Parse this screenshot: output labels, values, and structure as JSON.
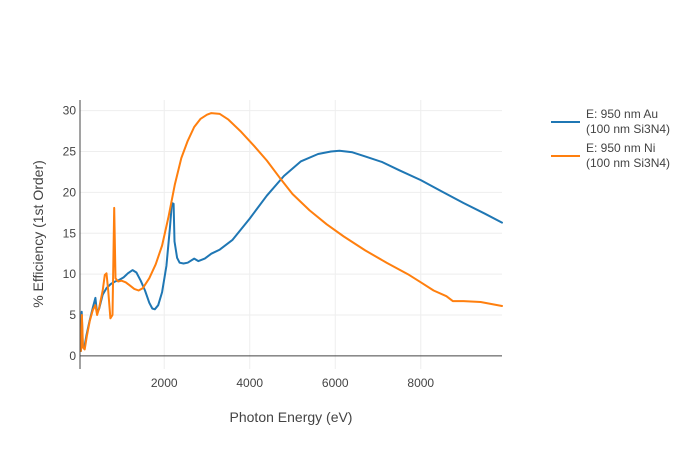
{
  "chart_data": {
    "type": "line",
    "xlabel": "Photon Energy (eV)",
    "ylabel": "% Efficiency (1st Order)",
    "xlim": [
      30,
      9900
    ],
    "ylim": [
      -1.6,
      31.3
    ],
    "x_ticks": [
      2000,
      4000,
      6000,
      8000
    ],
    "x_tick_labels": [
      "2000",
      "4000",
      "6000",
      "8000"
    ],
    "y_ticks": [
      0,
      5,
      10,
      15,
      20,
      25,
      30
    ],
    "y_tick_labels": [
      "0",
      "5",
      "10",
      "15",
      "20",
      "25",
      "30"
    ],
    "grid": true,
    "legend_position": "top-right",
    "series": [
      {
        "name": "E: 950 nm Au (100 nm Si3N4)",
        "legend_lines": [
          "E: 950 nm Au",
          "(100 nm Si3N4)"
        ],
        "color": "#1f77b4",
        "points": [
          [
            50,
            0.6
          ],
          [
            70,
            5.4
          ],
          [
            95,
            1.2
          ],
          [
            130,
            1.0
          ],
          [
            180,
            2.5
          ],
          [
            250,
            4.2
          ],
          [
            330,
            5.9
          ],
          [
            390,
            7.1
          ],
          [
            430,
            5.2
          ],
          [
            480,
            5.8
          ],
          [
            560,
            7.5
          ],
          [
            650,
            8.3
          ],
          [
            750,
            8.8
          ],
          [
            850,
            9.1
          ],
          [
            950,
            9.3
          ],
          [
            1050,
            9.6
          ],
          [
            1150,
            10.1
          ],
          [
            1260,
            10.5
          ],
          [
            1350,
            10.2
          ],
          [
            1450,
            9.2
          ],
          [
            1550,
            8.0
          ],
          [
            1650,
            6.5
          ],
          [
            1720,
            5.8
          ],
          [
            1780,
            5.7
          ],
          [
            1860,
            6.2
          ],
          [
            1950,
            7.8
          ],
          [
            2050,
            11.0
          ],
          [
            2130,
            15.5
          ],
          [
            2180,
            18.7
          ],
          [
            2220,
            18.6
          ],
          [
            2240,
            14.0
          ],
          [
            2300,
            12.0
          ],
          [
            2360,
            11.4
          ],
          [
            2450,
            11.3
          ],
          [
            2550,
            11.4
          ],
          [
            2700,
            11.9
          ],
          [
            2800,
            11.6
          ],
          [
            2950,
            11.9
          ],
          [
            3100,
            12.5
          ],
          [
            3300,
            13.0
          ],
          [
            3600,
            14.2
          ],
          [
            4000,
            16.8
          ],
          [
            4400,
            19.6
          ],
          [
            4800,
            22.0
          ],
          [
            5200,
            23.8
          ],
          [
            5600,
            24.7
          ],
          [
            5900,
            25.0
          ],
          [
            6100,
            25.1
          ],
          [
            6400,
            24.9
          ],
          [
            6700,
            24.4
          ],
          [
            7100,
            23.7
          ],
          [
            7500,
            22.7
          ],
          [
            8000,
            21.5
          ],
          [
            8500,
            20.1
          ],
          [
            9000,
            18.7
          ],
          [
            9500,
            17.4
          ],
          [
            9900,
            16.3
          ]
        ]
      },
      {
        "name": "E: 950 nm Ni (100 nm Si3N4)",
        "legend_lines": [
          "E: 950 nm Ni",
          "(100 nm Si3N4)"
        ],
        "color": "#ff7f0e",
        "points": [
          [
            50,
            0.6
          ],
          [
            75,
            5.0
          ],
          [
            100,
            1.0
          ],
          [
            140,
            0.8
          ],
          [
            190,
            2.4
          ],
          [
            260,
            4.3
          ],
          [
            330,
            5.6
          ],
          [
            390,
            6.2
          ],
          [
            430,
            5.0
          ],
          [
            480,
            5.9
          ],
          [
            560,
            8.0
          ],
          [
            610,
            9.9
          ],
          [
            650,
            10.1
          ],
          [
            690,
            8.0
          ],
          [
            740,
            4.6
          ],
          [
            790,
            5.0
          ],
          [
            830,
            18.1
          ],
          [
            860,
            9.5
          ],
          [
            920,
            9.1
          ],
          [
            1000,
            9.2
          ],
          [
            1100,
            9.0
          ],
          [
            1200,
            8.6
          ],
          [
            1300,
            8.2
          ],
          [
            1400,
            8.0
          ],
          [
            1500,
            8.3
          ],
          [
            1650,
            9.5
          ],
          [
            1800,
            11.2
          ],
          [
            1950,
            13.5
          ],
          [
            2100,
            17.0
          ],
          [
            2250,
            21.0
          ],
          [
            2400,
            24.2
          ],
          [
            2550,
            26.3
          ],
          [
            2700,
            28.0
          ],
          [
            2850,
            29.0
          ],
          [
            3000,
            29.5
          ],
          [
            3100,
            29.7
          ],
          [
            3300,
            29.6
          ],
          [
            3500,
            28.9
          ],
          [
            3800,
            27.4
          ],
          [
            4100,
            25.7
          ],
          [
            4400,
            23.9
          ],
          [
            4700,
            21.8
          ],
          [
            5000,
            19.8
          ],
          [
            5400,
            17.8
          ],
          [
            5800,
            16.1
          ],
          [
            6200,
            14.6
          ],
          [
            6700,
            12.9
          ],
          [
            7200,
            11.4
          ],
          [
            7700,
            10.0
          ],
          [
            8000,
            9.0
          ],
          [
            8300,
            8.0
          ],
          [
            8600,
            7.3
          ],
          [
            8750,
            6.7
          ],
          [
            9000,
            6.7
          ],
          [
            9400,
            6.6
          ],
          [
            9900,
            6.1
          ]
        ]
      }
    ]
  }
}
